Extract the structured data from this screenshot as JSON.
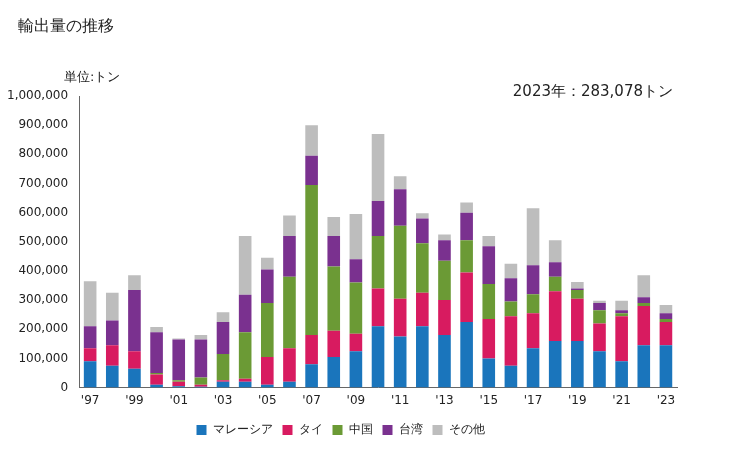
{
  "chart_data": {
    "type": "bar",
    "title": "輸出量の推移",
    "y_label": "単位:トン",
    "annotation": "2023年：283,078トン",
    "stacked": true,
    "grid": false,
    "legend": "bottom",
    "categories": [
      "'97",
      null,
      "'99",
      null,
      "'01",
      null,
      "'03",
      null,
      "'05",
      null,
      "'07",
      null,
      "'09",
      null,
      "'11",
      null,
      "'13",
      null,
      "'15",
      null,
      "'17",
      null,
      "'19",
      null,
      "'21",
      null,
      "'23"
    ],
    "series": [
      {
        "name": "マレーシア",
        "color": "#1a75bc",
        "values": [
          90000,
          75000,
          65000,
          10000,
          5000,
          3000,
          20000,
          20000,
          10000,
          20000,
          80000,
          105000,
          125000,
          210000,
          175000,
          210000,
          180000,
          225000,
          100000,
          75000,
          135000,
          160000,
          160000,
          125000,
          90000,
          145000,
          145000
        ]
      },
      {
        "name": "タイ",
        "color": "#d81b60",
        "values": [
          45000,
          70000,
          60000,
          35000,
          15000,
          7000,
          5000,
          10000,
          95000,
          115000,
          100000,
          90000,
          60000,
          130000,
          130000,
          115000,
          120000,
          170000,
          135000,
          170000,
          120000,
          170000,
          145000,
          95000,
          155000,
          135000,
          80000
        ]
      },
      {
        "name": "中国",
        "color": "#6b9a35",
        "values": [
          0,
          0,
          0,
          5000,
          5000,
          25000,
          90000,
          160000,
          185000,
          245000,
          515000,
          220000,
          175000,
          180000,
          250000,
          170000,
          135000,
          110000,
          120000,
          50000,
          65000,
          50000,
          30000,
          45000,
          10000,
          10000,
          10000
        ]
      },
      {
        "name": "台湾",
        "color": "#7a318f",
        "values": [
          75000,
          85000,
          210000,
          140000,
          140000,
          130000,
          110000,
          128000,
          115000,
          140000,
          100000,
          105000,
          80000,
          120000,
          125000,
          85000,
          70000,
          95000,
          130000,
          80000,
          100000,
          50000,
          5000,
          25000,
          10000,
          20000,
          20000
        ]
      },
      {
        "name": "その他",
        "color": "#bdbdbd",
        "values": [
          155000,
          95000,
          50000,
          18000,
          3000,
          15000,
          33000,
          202000,
          40000,
          70000,
          105000,
          65000,
          155000,
          230000,
          45000,
          18000,
          20000,
          35000,
          35000,
          50000,
          195000,
          75000,
          22000,
          8000,
          33000,
          75000,
          28000
        ]
      }
    ],
    "ylim": [
      0,
      1000000
    ],
    "yticks": [
      0,
      {
        "value": 100000,
        "label": "100,000"
      },
      {
        "value": 200000,
        "label": "200,000"
      },
      {
        "value": 300000,
        "label": "300,000"
      },
      {
        "value": 400000,
        "label": "400,000"
      },
      {
        "value": 500000,
        "label": "500,000"
      },
      {
        "value": 600000,
        "label": "600,000"
      },
      {
        "value": 700000,
        "label": "700,000"
      },
      {
        "value": 800000,
        "label": "800,000"
      },
      {
        "value": 900000,
        "label": "900,000"
      },
      {
        "value": 1000000,
        "label": "1,000,000"
      }
    ]
  }
}
